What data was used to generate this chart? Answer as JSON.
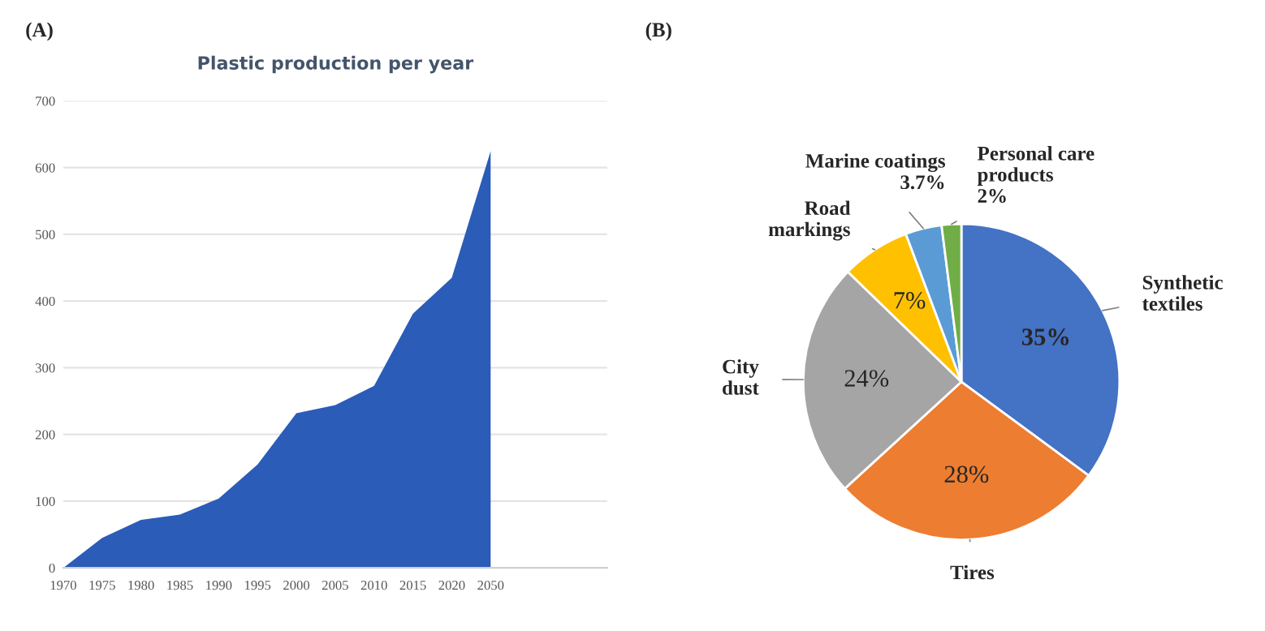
{
  "chart_data": [
    {
      "type": "area",
      "title": "Plastic production per year",
      "annotations": [
        "(A)"
      ],
      "categories": [
        "1970",
        "1975",
        "1980",
        "1985",
        "1990",
        "1995",
        "2000",
        "2005",
        "2010",
        "2015",
        "2020",
        "2050",
        null,
        null,
        null
      ],
      "values": [
        0,
        45,
        72,
        80,
        104,
        155,
        232,
        244,
        273,
        381,
        435,
        625,
        null,
        null,
        null
      ],
      "color": "#2a5cb8",
      "ylim": [
        0,
        700
      ],
      "yticks": [
        0,
        100,
        200,
        300,
        400,
        500,
        600,
        700
      ],
      "grid": "y",
      "legend": false
    },
    {
      "type": "pie",
      "annotations": [
        "(B)"
      ],
      "categories": [
        "Synthetic\ntextiles",
        "Tires",
        "City\ndust",
        "Road\nmarkings",
        "Marine coatings",
        "Personal care\nproducts"
      ],
      "values": [
        35,
        28,
        24,
        7,
        3.7,
        2
      ],
      "colors": [
        "#4472c4",
        "#ed7d31",
        "#a5a5a5",
        "#ffc000",
        "#5b9bd5",
        "#70ad47"
      ],
      "value_labels": [
        "35%",
        "28%",
        "24%",
        "7%",
        "3.7%",
        "2%"
      ],
      "legend": false
    }
  ]
}
